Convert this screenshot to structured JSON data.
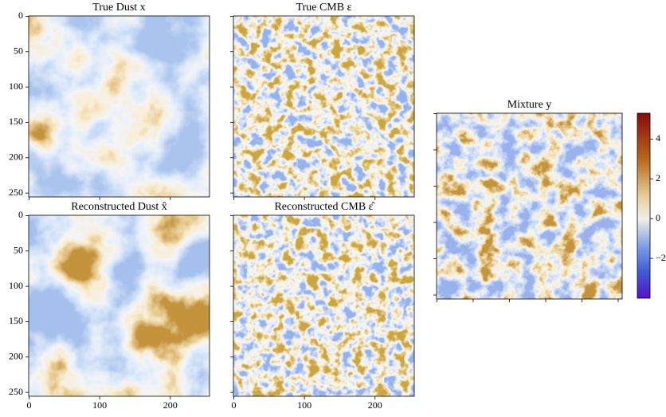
{
  "chart_data": [
    {
      "type": "image",
      "title": "True Dust x",
      "xlim": [
        -0.5,
        255.5
      ],
      "ylim": [
        255.5,
        -0.5
      ],
      "xticks": [
        0,
        100,
        200
      ],
      "yticks": [
        0,
        50,
        100,
        150,
        200,
        250
      ],
      "show_xticklabels": false,
      "show_yticklabels": true
    },
    {
      "type": "image",
      "title": "True CMB ε",
      "xlim": [
        -0.5,
        255.5
      ],
      "ylim": [
        255.5,
        -0.5
      ],
      "xticks": [
        0,
        100,
        200
      ],
      "yticks": [
        0,
        50,
        100,
        150,
        200,
        250
      ],
      "show_xticklabels": false,
      "show_yticklabels": false
    },
    {
      "type": "image",
      "title": "Reconstructed Dust x̂",
      "xlim": [
        -0.5,
        255.5
      ],
      "ylim": [
        255.5,
        -0.5
      ],
      "xticks": [
        0,
        100,
        200
      ],
      "yticks": [
        0,
        50,
        100,
        150,
        200,
        250
      ],
      "show_xticklabels": true,
      "show_yticklabels": true
    },
    {
      "type": "image",
      "title": "Reconstructed CMB ε̂",
      "xlim": [
        -0.5,
        255.5
      ],
      "ylim": [
        255.5,
        -0.5
      ],
      "xticks": [
        0,
        100,
        200
      ],
      "yticks": [
        0,
        50,
        100,
        150,
        200,
        250
      ],
      "show_xticklabels": true,
      "show_yticklabels": false
    },
    {
      "type": "image",
      "title": "Mixture y",
      "xlim": [
        -0.5,
        255.5
      ],
      "ylim": [
        255.5,
        -0.5
      ],
      "xticks": [
        0,
        50,
        100,
        150,
        200,
        250
      ],
      "yticks": [
        0,
        50,
        100,
        150,
        200,
        250
      ],
      "show_xticklabels": false,
      "show_yticklabels": false,
      "colorbar": {
        "lim": [
          -4,
          5.3
        ],
        "ticks": [
          {
            "value": -2,
            "label": "−2"
          },
          0,
          2,
          4
        ]
      }
    }
  ]
}
